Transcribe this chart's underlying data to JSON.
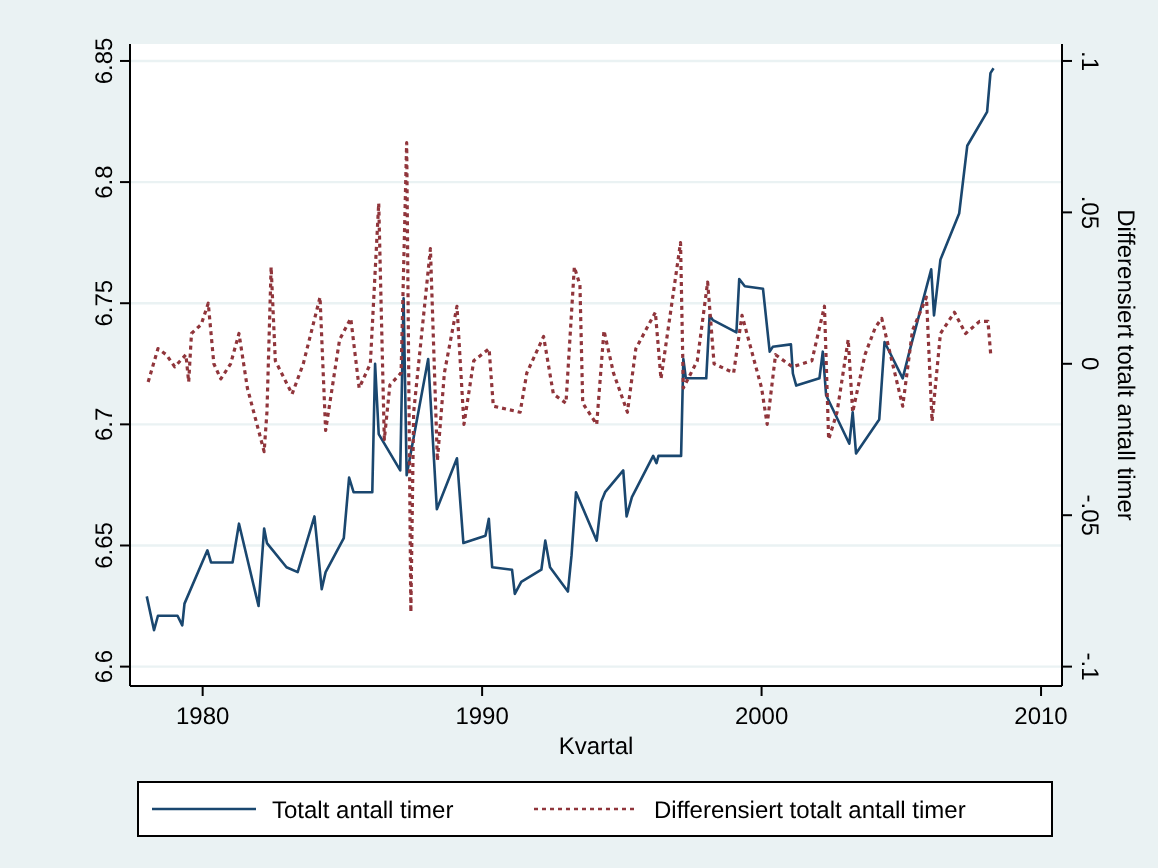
{
  "chart_data": {
    "type": "line",
    "xlabel": "Kvartal",
    "y2label": "Differensiert totalt antall timer",
    "xlim": [
      1977.4,
      2010.75
    ],
    "xticks": [
      1980,
      1990,
      2000,
      2010
    ],
    "ylim": [
      6.592,
      6.857
    ],
    "yticks": [
      6.6,
      6.65,
      6.7,
      6.75,
      6.8,
      6.85
    ],
    "y2lim": [
      -0.1064,
      0.1056
    ],
    "y2ticks": [
      {
        "value": -0.1,
        "label": "-.1"
      },
      {
        "value": -0.05,
        "label": "-.05"
      },
      0,
      {
        "value": 0.05,
        "label": ".05"
      },
      {
        "value": 0.1,
        "label": ".1"
      }
    ],
    "grid": "y",
    "legend": "bottom",
    "marker": "none",
    "series": [
      {
        "name": "Totalt antall timer",
        "color": "#1a476f",
        "line_style": "solid",
        "x": [
          1978.0,
          1978.26,
          1978.4,
          1979.1,
          1979.27,
          1979.35,
          1980.17,
          1980.3,
          1981.07,
          1981.3,
          1982.0,
          1982.2,
          1982.3,
          1983.0,
          1983.4,
          1984.0,
          1984.26,
          1984.4,
          1985.05,
          1985.24,
          1985.4,
          1986.07,
          1986.17,
          1986.3,
          1987.07,
          1987.19,
          1987.3,
          1988.07,
          1988.38,
          1989.1,
          1989.33,
          1990.12,
          1990.24,
          1990.36,
          1991.07,
          1991.17,
          1991.4,
          1992.12,
          1992.26,
          1992.43,
          1993.07,
          1993.2,
          1993.36,
          1994.1,
          1994.26,
          1994.4,
          1995.05,
          1995.17,
          1995.36,
          1996.12,
          1996.24,
          1996.31,
          1997.12,
          1997.2,
          1997.29,
          1998.02,
          1998.14,
          1998.26,
          1999.1,
          1999.2,
          1999.4,
          2000.05,
          2000.29,
          2000.4,
          2001.05,
          2001.12,
          2001.24,
          2002.07,
          2002.19,
          2002.31,
          2003.14,
          2003.26,
          2003.38,
          2004.21,
          2004.4,
          2005.05,
          2005.29,
          2006.07,
          2006.17,
          2006.4,
          2007.07,
          2007.36,
          2008.07,
          2008.19,
          2008.3
        ],
        "values": [
          6.629,
          6.615,
          6.621,
          6.621,
          6.617,
          6.626,
          6.648,
          6.643,
          6.643,
          6.659,
          6.625,
          6.657,
          6.651,
          6.641,
          6.639,
          6.662,
          6.632,
          6.639,
          6.653,
          6.678,
          6.672,
          6.672,
          6.725,
          6.696,
          6.681,
          6.752,
          6.679,
          6.727,
          6.665,
          6.686,
          6.651,
          6.654,
          6.661,
          6.641,
          6.64,
          6.63,
          6.635,
          6.64,
          6.652,
          6.641,
          6.631,
          6.646,
          6.672,
          6.652,
          6.668,
          6.672,
          6.681,
          6.662,
          6.67,
          6.687,
          6.684,
          6.687,
          6.687,
          6.727,
          6.719,
          6.719,
          6.745,
          6.743,
          6.738,
          6.76,
          6.757,
          6.756,
          6.73,
          6.732,
          6.733,
          6.721,
          6.716,
          6.719,
          6.73,
          6.712,
          6.692,
          6.705,
          6.688,
          6.702,
          6.734,
          6.719,
          6.73,
          6.764,
          6.745,
          6.768,
          6.787,
          6.815,
          6.829,
          6.845,
          6.847
        ]
      },
      {
        "name": "Differensiert totalt antall timer",
        "color": "#90353b",
        "line_style": "dotted",
        "axis": "y2",
        "x": [
          1978.05,
          1978.4,
          1978.7,
          1979.0,
          1979.4,
          1979.5,
          1979.6,
          1979.95,
          1980.2,
          1980.4,
          1980.65,
          1981.0,
          1981.3,
          1981.6,
          1982.2,
          1982.3,
          1982.45,
          1982.6,
          1983.2,
          1983.6,
          1984.2,
          1984.4,
          1984.9,
          1985.3,
          1985.6,
          1986.0,
          1986.3,
          1986.5,
          1986.7,
          1987.1,
          1987.3,
          1987.45,
          1987.55,
          1988.15,
          1988.4,
          1988.65,
          1989.1,
          1989.35,
          1989.7,
          1990.25,
          1990.4,
          1991.36,
          1991.6,
          1992.2,
          1992.55,
          1993.0,
          1993.3,
          1993.5,
          1993.6,
          1994.1,
          1994.36,
          1994.7,
          1995.2,
          1995.5,
          1996.2,
          1996.4,
          1997.1,
          1997.2,
          1997.7,
          1998.07,
          1998.3,
          1999.0,
          1999.3,
          2000.0,
          2000.2,
          2000.5,
          2001.1,
          2001.8,
          2002.25,
          2002.4,
          2002.7,
          2003.1,
          2003.26,
          2003.7,
          2004.07,
          2004.3,
          2005.05,
          2005.4,
          2005.9,
          2006.1,
          2006.4,
          2006.9,
          2007.3,
          2007.8,
          2008.1,
          2008.2
        ],
        "values": [
          -0.006,
          0.005,
          0.003,
          -0.001,
          0.003,
          -0.006,
          0.01,
          0.013,
          0.02,
          0.0,
          -0.005,
          0.0,
          0.01,
          -0.008,
          -0.029,
          -0.016,
          0.032,
          0.001,
          -0.01,
          0.0,
          0.022,
          -0.022,
          0.008,
          0.015,
          -0.008,
          0.0,
          0.053,
          -0.025,
          -0.007,
          -0.003,
          0.073,
          -0.082,
          -0.016,
          0.038,
          -0.032,
          -0.003,
          0.019,
          -0.02,
          0.001,
          0.005,
          -0.014,
          -0.016,
          -0.003,
          0.009,
          -0.01,
          -0.013,
          0.032,
          0.026,
          -0.013,
          -0.02,
          0.011,
          -0.003,
          -0.016,
          0.005,
          0.017,
          -0.005,
          0.04,
          -0.008,
          0.001,
          0.027,
          0.0,
          -0.003,
          0.016,
          -0.008,
          -0.02,
          0.003,
          -0.001,
          0.001,
          0.019,
          -0.025,
          -0.016,
          0.008,
          -0.016,
          0.003,
          0.012,
          0.015,
          -0.014,
          0.011,
          0.022,
          -0.019,
          0.01,
          0.017,
          0.01,
          0.014,
          0.014,
          0.003
        ]
      }
    ]
  }
}
